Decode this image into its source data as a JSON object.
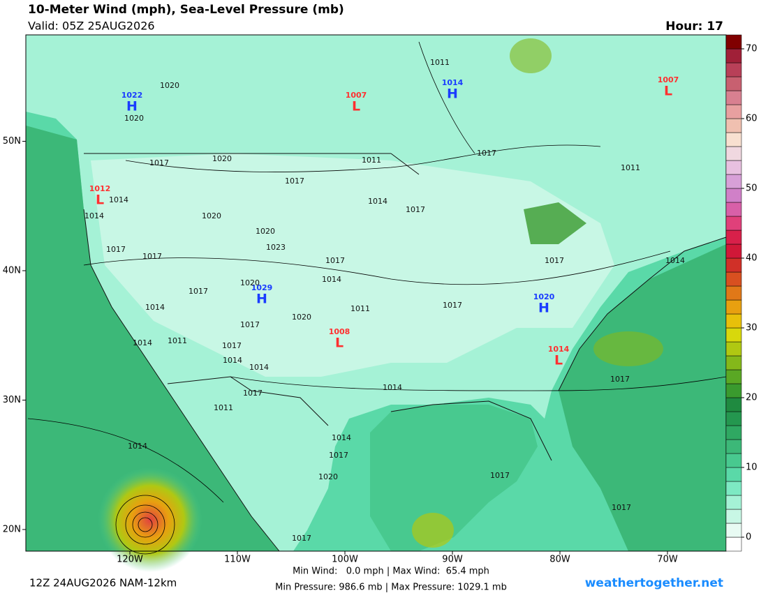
{
  "header": {
    "title": "10-Meter Wind (mph), Sea-Level Pressure (mb)",
    "valid": "Valid: 05Z 25AUG2026",
    "hour": "Hour: 17"
  },
  "map": {
    "lat_ticks": [
      {
        "value": 50,
        "label": "50N"
      },
      {
        "value": 40,
        "label": "40N"
      },
      {
        "value": 30,
        "label": "30N"
      },
      {
        "value": 20,
        "label": "20N"
      }
    ],
    "lon_ticks": [
      {
        "value": -120,
        "label": "120W"
      },
      {
        "value": -110,
        "label": "110W"
      },
      {
        "value": -100,
        "label": "100W"
      },
      {
        "value": -90,
        "label": "90W"
      },
      {
        "value": -80,
        "label": "80W"
      },
      {
        "value": -70,
        "label": "70W"
      }
    ],
    "centers": [
      {
        "type": "H",
        "pressure": 1022
      },
      {
        "type": "L",
        "pressure": 1012
      },
      {
        "type": "L",
        "pressure": 1007
      },
      {
        "type": "H",
        "pressure": 1014
      },
      {
        "type": "L",
        "pressure": 1007
      },
      {
        "type": "H",
        "pressure": 1029
      },
      {
        "type": "L",
        "pressure": 1008
      },
      {
        "type": "H",
        "pressure": 1020
      },
      {
        "type": "L",
        "pressure": 1014
      }
    ],
    "isobar_labels": [
      1020,
      1020,
      1011,
      1017,
      1011,
      1020,
      1017,
      1017,
      1011,
      1014,
      1014,
      1014,
      1017,
      1020,
      1020,
      1023,
      1017,
      1017,
      1017,
      1017,
      1014,
      1014,
      1017,
      1020,
      1014,
      1011,
      1017,
      1020,
      1017,
      1014,
      1011,
      1017,
      1014,
      1014,
      1017,
      1014,
      1017,
      1011,
      1014,
      1014,
      1017,
      1020,
      1017,
      1017,
      1017
    ]
  },
  "colorbar": {
    "ticks": [
      0,
      10,
      20,
      30,
      40,
      50,
      60,
      70
    ],
    "colors": [
      "#ffffff",
      "#e8fbf3",
      "#c8f7e5",
      "#a5f2d6",
      "#7de9c3",
      "#5ad9a8",
      "#48c98f",
      "#3cb878",
      "#2fa862",
      "#24974f",
      "#1f8a40",
      "#3a9a2e",
      "#5aa824",
      "#84b81a",
      "#b0c812",
      "#d8d80c",
      "#e8c00a",
      "#e8a010",
      "#e07818",
      "#d85020",
      "#d03028",
      "#d01838",
      "#d8204a",
      "#e0407a",
      "#d860a8",
      "#d080c8",
      "#d8a0d8",
      "#e8c0e0",
      "#f0d8e0",
      "#f8e0d0",
      "#f0c0b0",
      "#e8a0a0",
      "#d88090",
      "#c86070",
      "#b84058",
      "#a02038",
      "#800000"
    ]
  },
  "footer": {
    "run": "12Z 24AUG2026 NAM-12km",
    "wind": "Min Wind:   0.0 mph | Max Wind:  65.4 mph",
    "pressure": "Min Pressure: 986.6 mb | Max Pressure: 1029.1 mb",
    "site": "weathertogether.net"
  }
}
